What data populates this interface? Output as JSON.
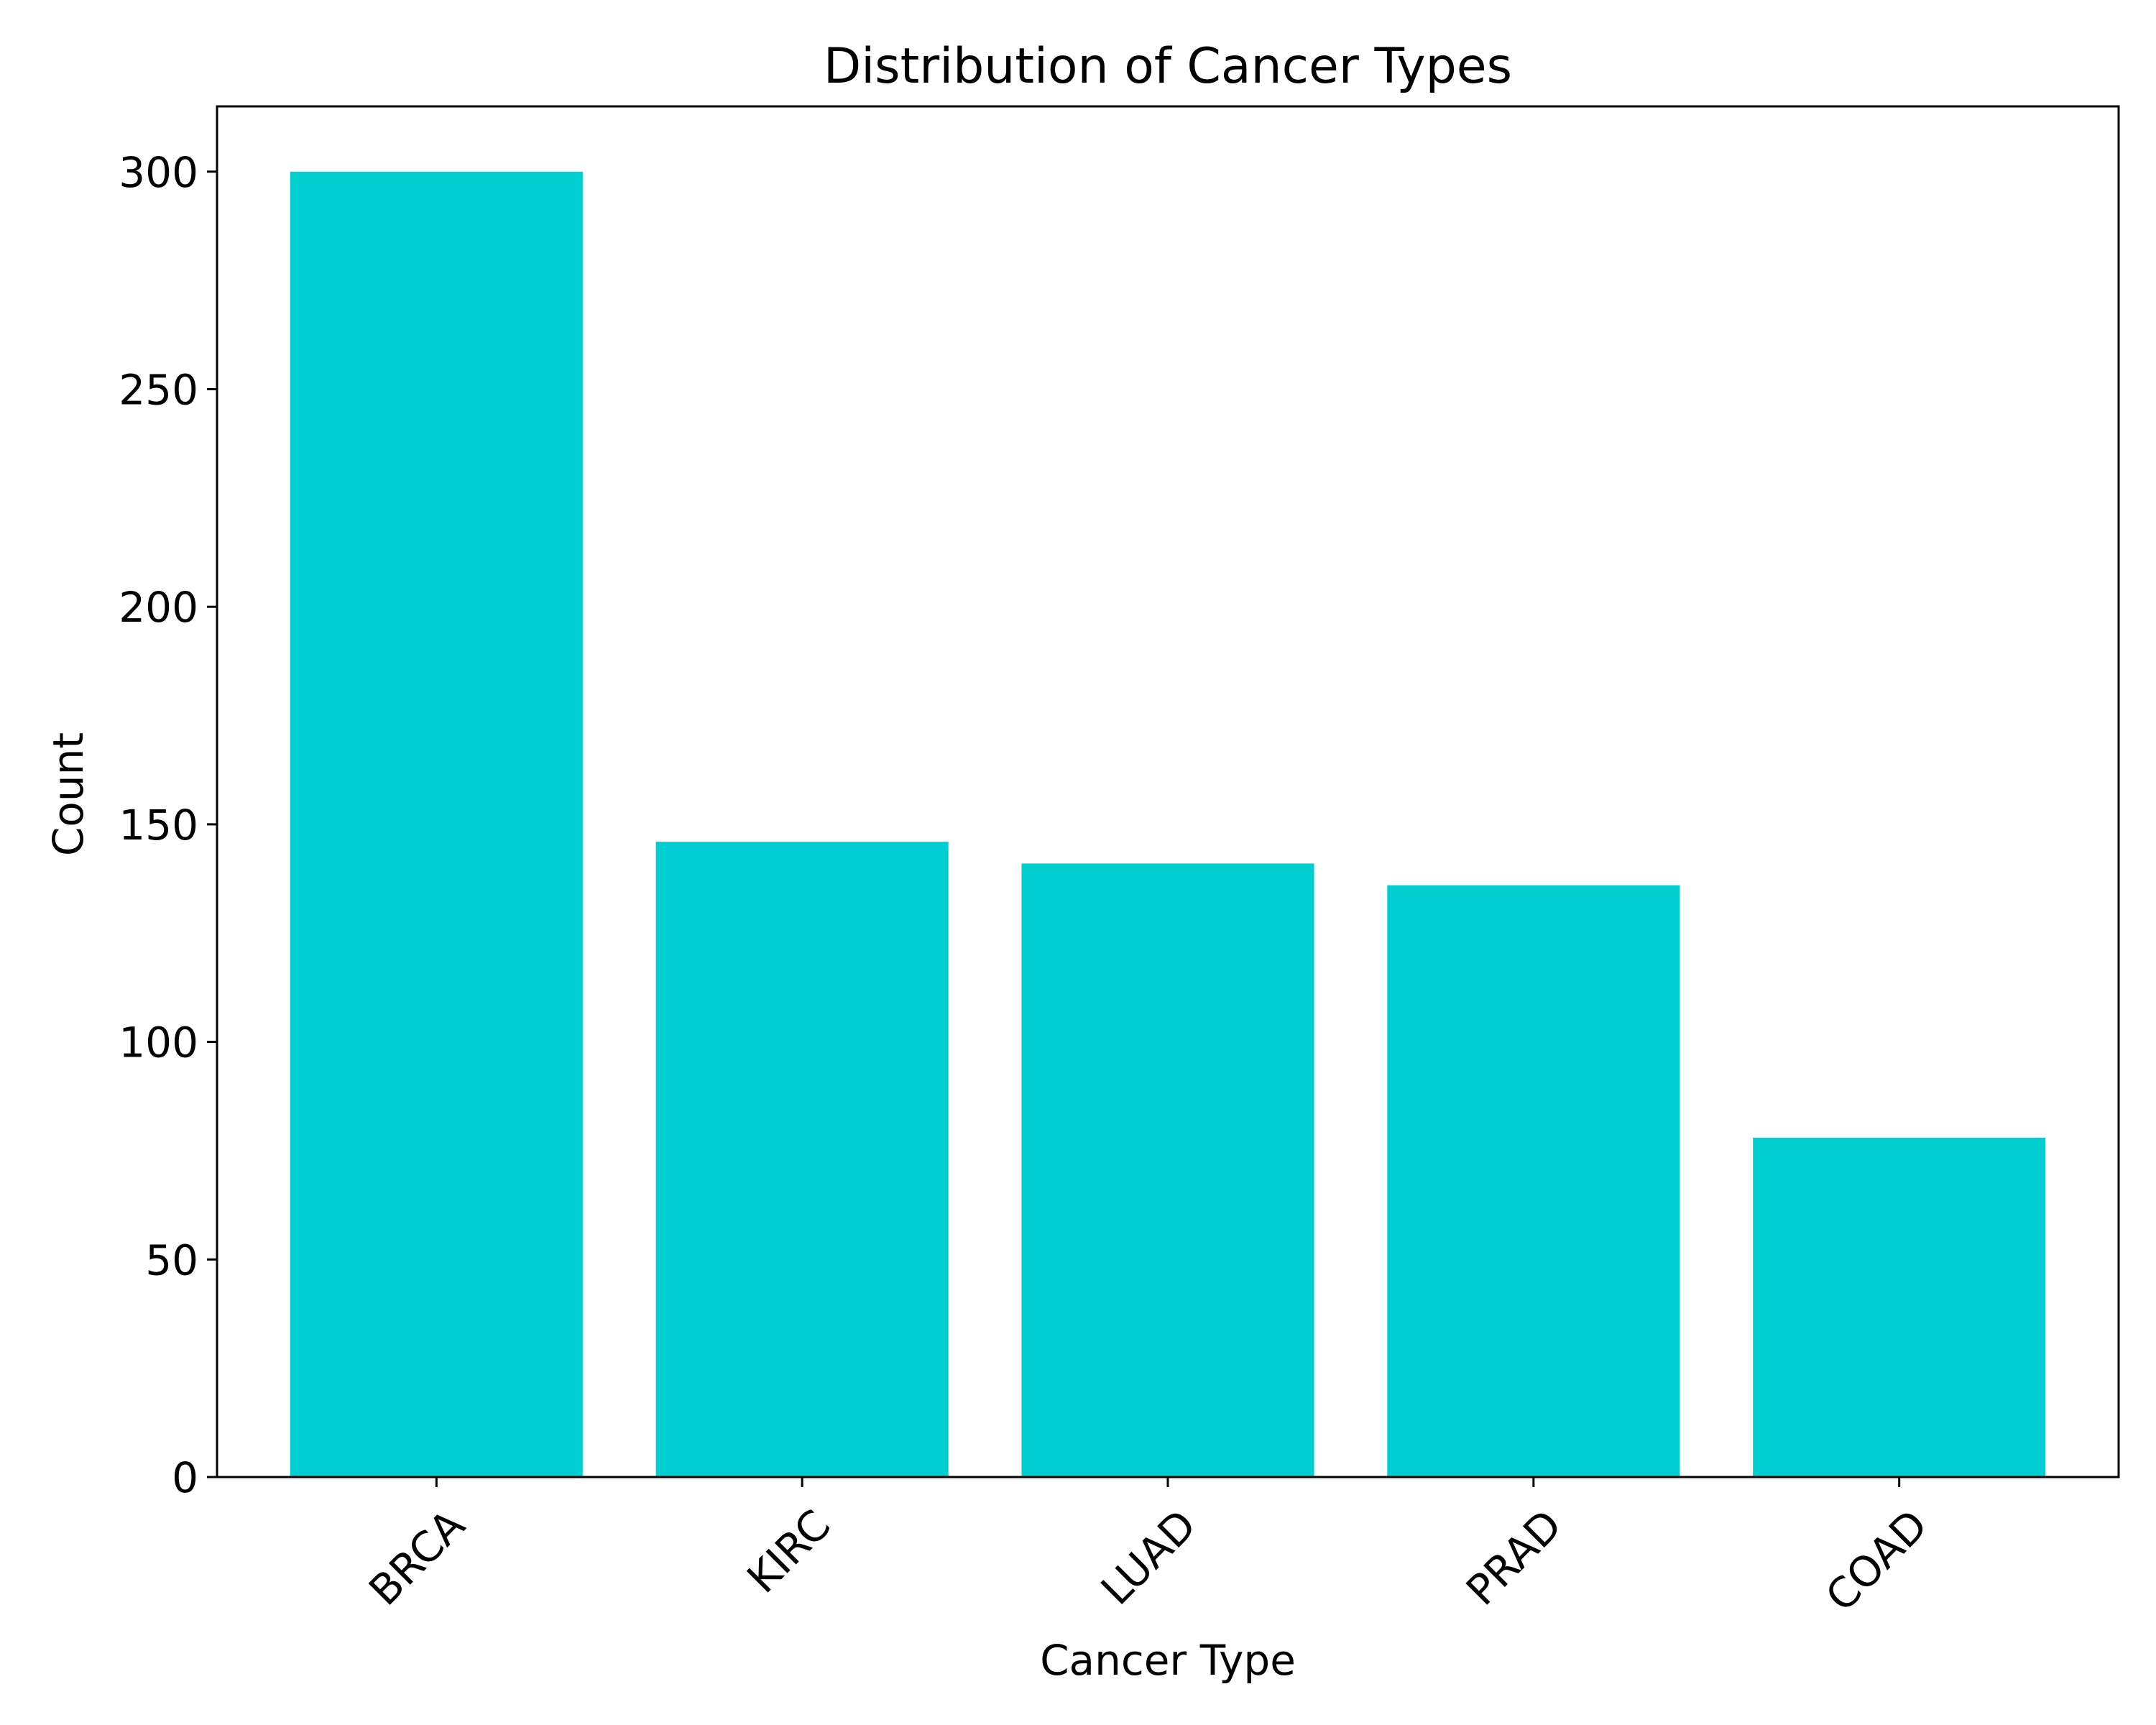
{
  "chart_data": {
    "type": "bar",
    "title": "Distribution of Cancer Types",
    "xlabel": "Cancer Type",
    "ylabel": "Count",
    "categories": [
      "BRCA",
      "KIRC",
      "LUAD",
      "PRAD",
      "COAD"
    ],
    "values": [
      300,
      146,
      141,
      136,
      78
    ],
    "ylim": [
      0,
      315
    ],
    "yticks": [
      0,
      50,
      100,
      150,
      200,
      250,
      300
    ],
    "bar_color": "#00CED1",
    "grid": false,
    "legend": "none"
  }
}
